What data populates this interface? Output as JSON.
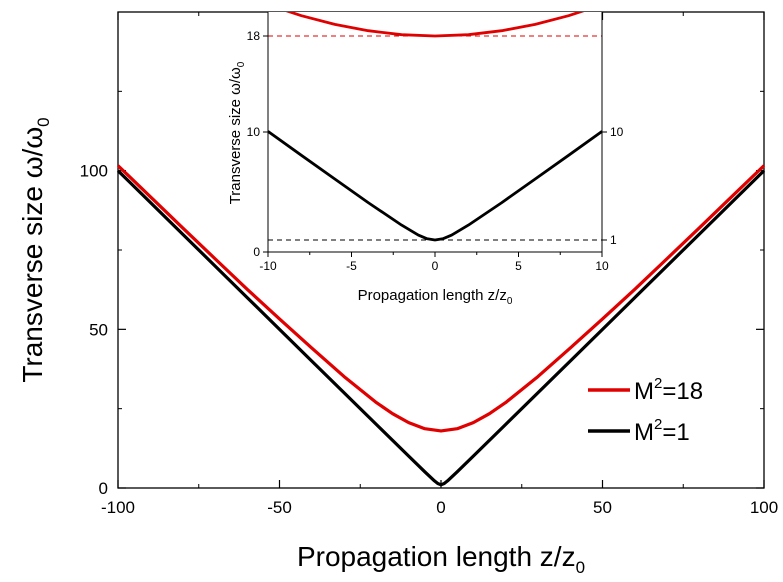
{
  "chart_data": [
    {
      "type": "line",
      "role": "main",
      "xlabel": "Propagation length z/z",
      "xlabel_sub": "0",
      "ylabel": "Transverse size ω/ω",
      "ylabel_sub": "0",
      "xlim": [
        -100,
        100
      ],
      "ylim": [
        0,
        150
      ],
      "xticks": [
        "-100",
        "-50",
        "0",
        "50",
        "100"
      ],
      "yticks": [
        "0",
        "50",
        "100"
      ],
      "legend_position": "bottom-right",
      "series": [
        {
          "name": "M",
          "name_sup": "2",
          "name_suffix": "=18",
          "color": "#e00000",
          "x": [
            -100,
            -90,
            -80,
            -70,
            -60,
            -50,
            -40,
            -30,
            -20,
            -15,
            -10,
            -5,
            0,
            5,
            10,
            15,
            20,
            30,
            40,
            50,
            60,
            70,
            80,
            90,
            100
          ],
          "y": [
            101.6,
            91.8,
            82,
            72.3,
            62.6,
            53.3,
            44.1,
            35.1,
            26.9,
            23.4,
            20.6,
            18.7,
            18,
            18.7,
            20.6,
            23.4,
            26.9,
            35.1,
            44.1,
            53.3,
            62.6,
            72.3,
            82,
            91.8,
            101.6
          ]
        },
        {
          "name": "M",
          "name_sup": "2",
          "name_suffix": "=1",
          "color": "#000000",
          "x": [
            -100,
            -80,
            -60,
            -40,
            -20,
            -10,
            -5,
            -2,
            -1,
            0,
            1,
            2,
            5,
            10,
            20,
            40,
            60,
            80,
            100
          ],
          "y": [
            100,
            80,
            60,
            40,
            20,
            10.05,
            5.1,
            2.24,
            1.41,
            1,
            1.41,
            2.24,
            5.1,
            10.05,
            20,
            40,
            60,
            80,
            100
          ]
        }
      ]
    },
    {
      "type": "line",
      "role": "inset",
      "xlabel": "Propagation length z/z",
      "xlabel_sub": "0",
      "ylabel": "Transverse size ω/ω",
      "ylabel_sub": "0",
      "xlim": [
        -10,
        10
      ],
      "ylim": [
        0,
        20
      ],
      "xticks": [
        "-10",
        "-5",
        "0",
        "5",
        "10"
      ],
      "yticks": [
        "0",
        "10",
        "18"
      ],
      "right_ticks": [
        "1",
        "10"
      ],
      "reference_lines": [
        {
          "y": 18,
          "color": "#e00000",
          "style": "dashed"
        },
        {
          "y": 1,
          "color": "#000000",
          "style": "dashed"
        }
      ],
      "series": [
        {
          "name": "M2=18",
          "color": "#e00000",
          "x": [
            -10,
            -8,
            -6,
            -4,
            -2,
            0,
            2,
            4,
            6,
            8,
            10
          ],
          "y": [
            20.61,
            19.69,
            18.97,
            18.44,
            18.11,
            18,
            18.11,
            18.44,
            18.97,
            19.69,
            20.61
          ]
        },
        {
          "name": "M2=1",
          "color": "#000000",
          "x": [
            -10,
            -8,
            -6,
            -4,
            -2,
            -1,
            -0.5,
            0,
            0.5,
            1,
            2,
            4,
            6,
            8,
            10
          ],
          "y": [
            10.05,
            8.06,
            6.08,
            4.12,
            2.24,
            1.41,
            1.12,
            1,
            1.12,
            1.41,
            2.24,
            4.12,
            6.08,
            8.06,
            10.05
          ]
        }
      ]
    }
  ]
}
